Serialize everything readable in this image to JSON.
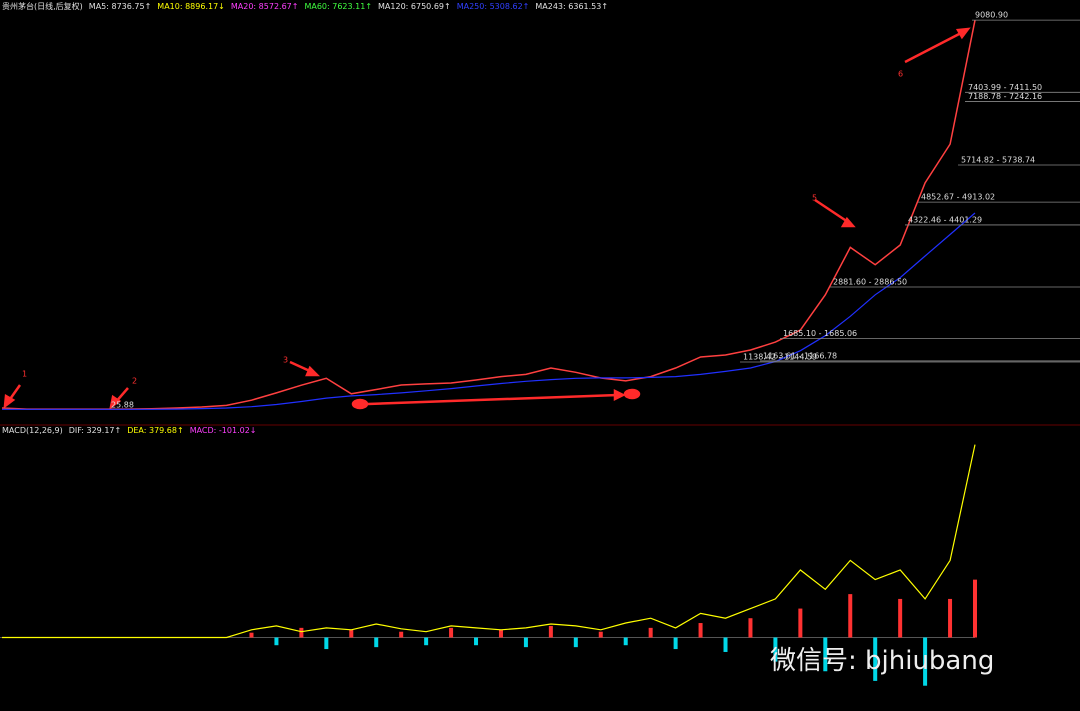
{
  "header": {
    "title": "贵州茅台(日线,后复权)",
    "items": [
      {
        "text": "MA5: 8736.75↑",
        "color": "#e0e0e0"
      },
      {
        "text": "MA10: 8896.17↓",
        "color": "#ffff00"
      },
      {
        "text": "MA20: 8572.67↑",
        "color": "#ff40ff"
      },
      {
        "text": "MA60: 7623.11↑",
        "color": "#40ff40"
      },
      {
        "text": "MA120: 6750.69↑",
        "color": "#e0e0e0"
      },
      {
        "text": "MA250: 5308.62↑",
        "color": "#3040ff"
      },
      {
        "text": "MA243: 6361.53↑",
        "color": "#e0e0e0"
      }
    ]
  },
  "macd_header": {
    "items": [
      {
        "text": "MACD(12,26,9)",
        "color": "#e0e0e0"
      },
      {
        "text": "DIF: 329.17↑",
        "color": "#e0e0e0"
      },
      {
        "text": "DEA: 379.68↑",
        "color": "#ffff00"
      },
      {
        "text": "MACD: -101.02↓",
        "color": "#ff40ff"
      }
    ]
  },
  "chart_data": [
    {
      "type": "line",
      "ylim": [
        0,
        9200
      ],
      "series": [
        {
          "color": "#ff4040",
          "values": [
            70,
            45,
            45,
            45,
            45,
            45,
            50,
            70,
            93,
            130,
            250,
            420,
            600,
            760,
            400,
            500,
            604,
            630,
            650,
            720,
            800,
            850,
            1000,
            900,
            767,
            700,
            800,
            1000,
            1254,
            1300,
            1417,
            1600,
            1882,
            2700,
            3800,
            3400,
            3857,
            5300,
            6200,
            9080
          ]
        },
        {
          "color": "#2030ff",
          "values": [
            40,
            40,
            40,
            40,
            40,
            40,
            40,
            45,
            55,
            70,
            100,
            150,
            220,
            300,
            350,
            380,
            420,
            470,
            520,
            580,
            640,
            690,
            730,
            760,
            770,
            770,
            780,
            800,
            850,
            920,
            1000,
            1150,
            1400,
            1750,
            2200,
            2700,
            3100,
            3600,
            4100,
            4600
          ]
        }
      ],
      "levels": [
        {
          "value": 9080.9,
          "label": "9080.90"
        },
        {
          "value": 7403.99,
          "label": "7403.99 - 7411.50"
        },
        {
          "value": 7188.78,
          "label": "7188.78 - 7242.16"
        },
        {
          "value": 5714.82,
          "label": "5714.82 - 5738.74"
        },
        {
          "value": 4852.67,
          "label": "4852.67 - 4913.02"
        },
        {
          "value": 4322.46,
          "label": "4322.46 - 4401.29"
        },
        {
          "value": 2881.6,
          "label": "2881.60 - 2886.50"
        },
        {
          "value": 1685.1,
          "label": "1685.10 - 1685.06"
        },
        {
          "value": 1163.61,
          "label": "1163.61 - 1166.78"
        },
        {
          "value": 1138.42,
          "label": "1138.42 - 1144.59"
        },
        {
          "value": 25.88,
          "label": "25.88"
        }
      ],
      "markers": [
        "1",
        "2",
        "3",
        "5",
        "6"
      ]
    },
    {
      "type": "bar",
      "ylim": [
        -70,
        210
      ],
      "up_color": "#ff3232",
      "down_color": "#00d8e8",
      "values": [
        0,
        0,
        0,
        0,
        0,
        0,
        0,
        0,
        0,
        0,
        5,
        -8,
        10,
        -12,
        8,
        -10,
        6,
        -8,
        10,
        -8,
        8,
        -10,
        12,
        -10,
        6,
        -8,
        10,
        -12,
        15,
        -15,
        20,
        -25,
        30,
        -35,
        45,
        -45,
        40,
        -50,
        40,
        60
      ],
      "series": [
        {
          "color": "#ffff00",
          "values": [
            0,
            0,
            0,
            0,
            0,
            0,
            0,
            0,
            0,
            0,
            8,
            12,
            6,
            10,
            8,
            14,
            9,
            6,
            12,
            10,
            8,
            10,
            14,
            12,
            8,
            15,
            20,
            10,
            25,
            20,
            30,
            40,
            70,
            50,
            80,
            60,
            70,
            40,
            80,
            200
          ]
        }
      ]
    }
  ],
  "watermark": "微信号: bjhiubang"
}
